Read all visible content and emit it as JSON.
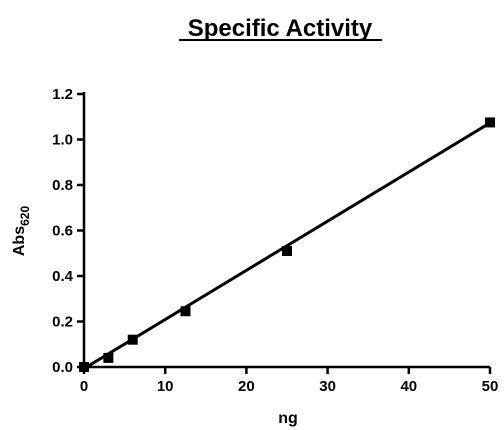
{
  "chart_data": {
    "type": "scatter",
    "title": "Specific Activity",
    "xlabel": "ng",
    "ylabel": "Abs",
    "ylabel_subscript": "620",
    "xlim": [
      0,
      50
    ],
    "ylim": [
      0,
      1.2
    ],
    "xticks": [
      "0",
      "10",
      "20",
      "30",
      "40",
      "50"
    ],
    "yticks": [
      "0.0",
      "0.2",
      "0.4",
      "0.6",
      "0.8",
      "1.0",
      "1.2"
    ],
    "grid": false,
    "series": [
      {
        "x": [
          0,
          3,
          6,
          12.5,
          25,
          50
        ],
        "y": [
          0.0,
          0.04,
          0.12,
          0.245,
          0.51,
          1.075
        ],
        "marker": "square",
        "color": "#000000"
      }
    ],
    "fit_line": {
      "x": [
        0,
        50
      ],
      "y": [
        -0.007,
        1.073
      ],
      "color": "#000000"
    }
  }
}
